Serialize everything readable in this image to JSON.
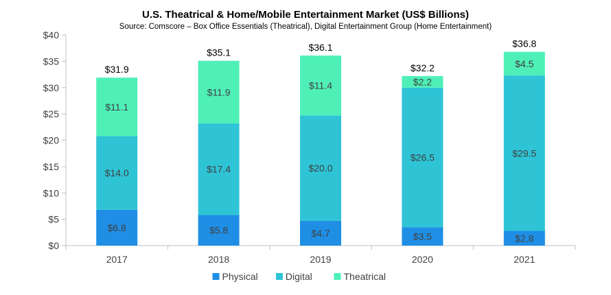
{
  "chart_data": {
    "type": "bar",
    "stacked": true,
    "title": "U.S. Theatrical & Home/Mobile Entertainment Market (US$ Billions)",
    "subtitle": "Source: Comscore – Box Office Essentials (Theatrical), Digital Entertainment Group (Home Entertainment)",
    "xlabel": "",
    "ylabel": "",
    "categories": [
      "2017",
      "2018",
      "2019",
      "2020",
      "2021"
    ],
    "ylim": [
      0,
      40
    ],
    "yticks": [
      0,
      5,
      10,
      15,
      20,
      25,
      30,
      35,
      40
    ],
    "ytick_labels": [
      "$0",
      "$5",
      "$10",
      "$15",
      "$20",
      "$25",
      "$30",
      "$35",
      "$40"
    ],
    "grid": false,
    "legend_position": "bottom",
    "series": [
      {
        "name": "Physical",
        "color": "#1f8fe6",
        "values": [
          6.8,
          5.8,
          4.7,
          3.5,
          2.8
        ],
        "labels": [
          "$6.8",
          "$5.8",
          "$4.7",
          "$3.5",
          "$2.8"
        ]
      },
      {
        "name": "Digital",
        "color": "#2ec4d6",
        "values": [
          14.0,
          17.4,
          20.0,
          26.5,
          29.5
        ],
        "labels": [
          "$14.0",
          "$17.4",
          "$20.0",
          "$26.5",
          "$29.5"
        ]
      },
      {
        "name": "Theatrical",
        "color": "#4ff0b8",
        "values": [
          11.1,
          11.9,
          11.4,
          2.2,
          4.5
        ],
        "labels": [
          "$11.1",
          "$11.9",
          "$11.4",
          "$2.2",
          "$4.5"
        ]
      }
    ],
    "totals": [
      31.9,
      35.1,
      36.1,
      32.2,
      36.8
    ],
    "total_labels": [
      "$31.9",
      "$35.1",
      "$36.1",
      "$32.2",
      "$36.8"
    ]
  }
}
